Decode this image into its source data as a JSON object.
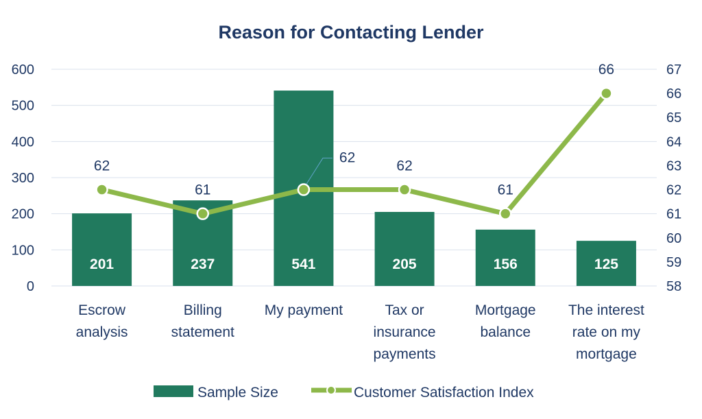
{
  "chart_data": {
    "type": "bar",
    "title": "Reason for Contacting Lender",
    "categories": [
      [
        "Escrow",
        "analysis"
      ],
      [
        "Billing",
        "statement"
      ],
      [
        "My payment"
      ],
      [
        "Tax or",
        "insurance",
        "payments"
      ],
      [
        "Mortgage",
        "balance"
      ],
      [
        "The interest",
        "rate on my",
        "mortgage"
      ]
    ],
    "series": [
      {
        "name": "Sample Size",
        "type": "bar",
        "axis": "left",
        "values": [
          201,
          237,
          541,
          205,
          156,
          125
        ],
        "data_labels": [
          "201",
          "237",
          "541",
          "205",
          "156",
          "125"
        ],
        "color": "#217a5e"
      },
      {
        "name": "Customer Satisfaction Index",
        "type": "line",
        "axis": "right",
        "values": [
          62,
          61,
          62,
          62,
          61,
          66
        ],
        "data_labels": [
          "62",
          "61",
          "62",
          "62",
          "61",
          "66"
        ],
        "color": "#8db84a"
      }
    ],
    "y_left": {
      "min": 0,
      "max": 600,
      "ticks": [
        "0",
        "100",
        "200",
        "300",
        "400",
        "500",
        "600"
      ]
    },
    "y_right": {
      "min": 58,
      "max": 67,
      "ticks": [
        "58",
        "59",
        "60",
        "61",
        "62",
        "63",
        "64",
        "65",
        "66",
        "67"
      ]
    },
    "grid": true,
    "legend_position": "bottom"
  }
}
